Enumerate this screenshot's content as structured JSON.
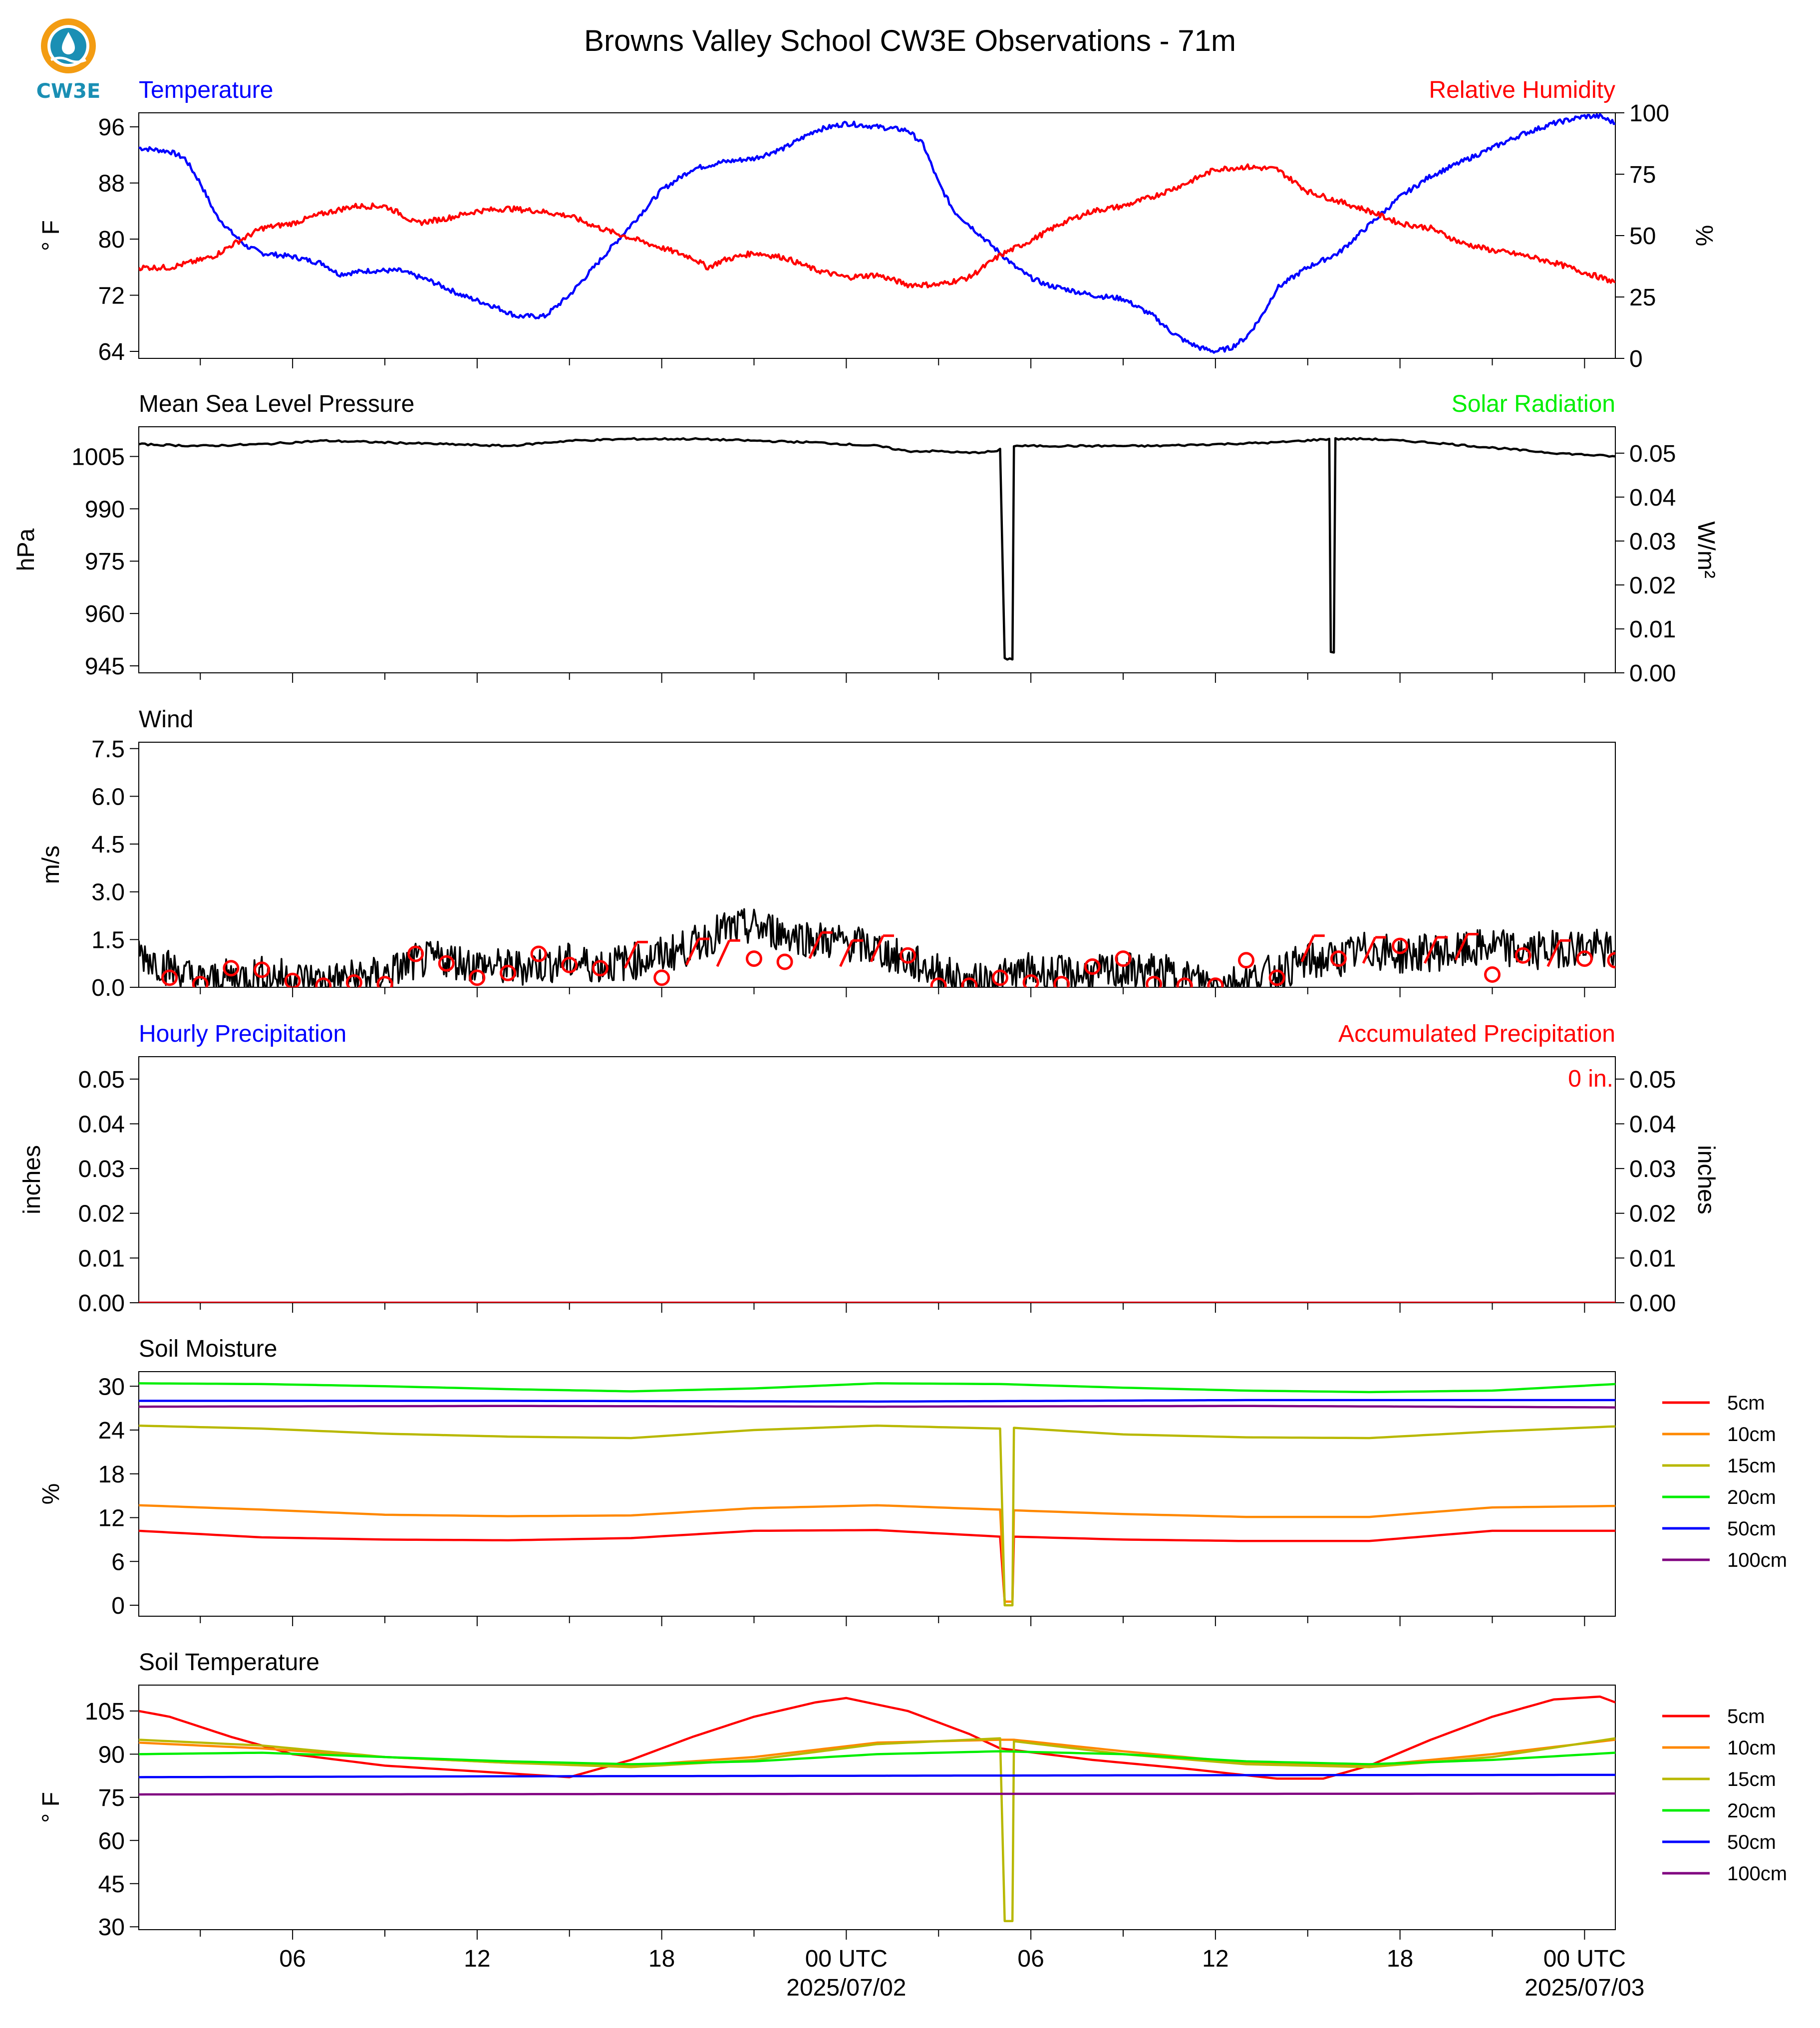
{
  "title": "Browns Valley School CW3E Observations - 71m",
  "logo": {
    "text": "CW3E",
    "icon": "water-drop-sun-logo-icon",
    "colors": {
      "ring": "#f39c12",
      "drop": "#1a8fb4"
    }
  },
  "xaxis": {
    "start_hour": 1,
    "end_hour": 49,
    "tick_hours": [
      6,
      12,
      18,
      24,
      30,
      36,
      42,
      48
    ],
    "tick_labels": [
      "06",
      "12",
      "18",
      "00 UTC",
      "06",
      "12",
      "18",
      "00 UTC"
    ],
    "date_labels": [
      {
        "hour": 24,
        "text": "2025/07/02"
      },
      {
        "hour": 48,
        "text": "2025/07/03"
      }
    ]
  },
  "chart_data": [
    {
      "type": "line",
      "panel": "temperature-humidity",
      "title_left": "Temperature",
      "title_right": "Relative Humidity",
      "ylabel": "° F",
      "ylabel_right": "%",
      "ylim": [
        63,
        98
      ],
      "yticks": [
        64,
        72,
        80,
        88,
        96
      ],
      "ylim_right": [
        0,
        100
      ],
      "yticks_right": [
        0,
        25,
        50,
        75,
        100
      ],
      "colors": {
        "left": "#0000ff",
        "right": "#ff0000"
      },
      "series": [
        {
          "name": "Temperature",
          "axis": "left",
          "color": "#0000ff",
          "x": [
            1,
            2,
            2.5,
            3,
            3.5,
            4,
            4.5,
            5,
            6,
            7,
            7.5,
            8.5,
            9.5,
            10.5,
            11.5,
            12.5,
            13.3,
            14.2,
            15,
            16,
            17,
            18,
            19,
            20,
            21,
            22,
            23,
            24,
            25,
            26,
            26.5,
            27,
            27.5,
            28,
            28.5,
            29,
            29.5,
            30,
            30.5,
            31,
            32,
            33,
            34,
            34.5,
            35,
            35.5,
            36,
            36.5,
            37,
            37.5,
            38,
            39,
            40,
            41,
            42,
            43,
            44,
            45,
            46,
            47,
            48,
            48.5,
            49
          ],
          "y": [
            93,
            92.5,
            91.5,
            88,
            83.5,
            81,
            79,
            78,
            77.5,
            76.5,
            75,
            75.5,
            75.5,
            74,
            72,
            70.5,
            69,
            69,
            72,
            77,
            82,
            87,
            90,
            91,
            91.5,
            93,
            95.5,
            96.5,
            96,
            95.5,
            93.5,
            88,
            84,
            82,
            80,
            78,
            76,
            74.5,
            73.5,
            73,
            72,
            71.5,
            69,
            67,
            65.5,
            64.5,
            64,
            64.5,
            66,
            69,
            73,
            76,
            78,
            82,
            86,
            89,
            91,
            93,
            95,
            96.5,
            97.5,
            97.5,
            96.5
          ]
        },
        {
          "name": "Relative Humidity",
          "axis": "right",
          "color": "#ff0000",
          "x": [
            1,
            2,
            3,
            3.5,
            4,
            5,
            6,
            6.5,
            7,
            8,
            9,
            9.5,
            10,
            11,
            12,
            13,
            14,
            15,
            16,
            17,
            18,
            19,
            19.5,
            20,
            21,
            22,
            23,
            24,
            25,
            26,
            27,
            28,
            29,
            30,
            31,
            32,
            33,
            34,
            35,
            36,
            37,
            38,
            39,
            40,
            41,
            42,
            43,
            44,
            45,
            46,
            47,
            48,
            49
          ],
          "y": [
            37,
            37,
            40,
            42,
            46,
            53,
            55,
            57,
            59,
            62,
            62,
            59,
            55,
            57,
            60,
            61,
            60,
            58,
            53,
            49,
            45,
            41,
            37,
            40,
            43,
            41,
            36,
            33,
            34,
            30,
            30,
            33,
            42,
            48,
            55,
            60,
            62,
            66,
            71,
            77,
            78,
            77,
            68,
            64,
            60,
            55,
            53,
            47,
            44,
            42,
            39,
            35,
            31
          ]
        }
      ]
    },
    {
      "type": "line",
      "panel": "pressure-solar",
      "title_left": "Mean Sea Level Pressure",
      "title_right": "Solar Radiation",
      "ylabel": "hPa",
      "ylabel_right": "W/m²",
      "ylim": [
        943,
        1013.5
      ],
      "yticks": [
        945,
        960,
        975,
        990,
        1005
      ],
      "ylim_right": [
        0,
        0.056
      ],
      "yticks_right": [
        0.0,
        0.01,
        0.02,
        0.03,
        0.04,
        0.05
      ],
      "colors": {
        "right_title": "#00ee00"
      },
      "series": [
        {
          "name": "Mean Sea Level Pressure",
          "axis": "left",
          "color": "#000000",
          "x": [
            1,
            3,
            5,
            7,
            9,
            11,
            13,
            15,
            17,
            19,
            21,
            23,
            25,
            26,
            27,
            28,
            28.9,
            29.0,
            29.15,
            29.4,
            29.45,
            30,
            32,
            34,
            36,
            38,
            39.7,
            39.75,
            39.85,
            39.9,
            41,
            43,
            45,
            47,
            49
          ],
          "y": [
            1008.5,
            1008,
            1008.5,
            1009.5,
            1009,
            1008.5,
            1008,
            1009.5,
            1010,
            1010,
            1009.5,
            1009,
            1008,
            1006.5,
            1006.5,
            1006,
            1006.5,
            1007,
            947,
            947,
            1008,
            1008,
            1008,
            1008,
            1008.5,
            1009,
            1010,
            949,
            949,
            1010,
            1010,
            1009,
            1007.5,
            1006,
            1005
          ]
        }
      ]
    },
    {
      "type": "line",
      "panel": "wind",
      "title_left": "Wind",
      "ylabel": "m/s",
      "ylim": [
        0,
        7.7
      ],
      "yticks": [
        0.0,
        1.5,
        3.0,
        4.5,
        6.0,
        7.5
      ],
      "series": [
        {
          "name": "Wind",
          "color": "#000000",
          "x": [
            1,
            2,
            3,
            4,
            5,
            6,
            7,
            8,
            9,
            10,
            11,
            12,
            13,
            14,
            15,
            16,
            17,
            18,
            19,
            20,
            21,
            22,
            23,
            24,
            25,
            26,
            27,
            28,
            29,
            30,
            31,
            32,
            33,
            34,
            35,
            36,
            37,
            38,
            39,
            40,
            41,
            42,
            43,
            44,
            45,
            46,
            47,
            48,
            49
          ],
          "y": [
            1.1,
            0.6,
            0.2,
            0.3,
            0.4,
            0.3,
            0.2,
            0.3,
            0.4,
            0.8,
            0.9,
            0.7,
            0.6,
            0.7,
            0.8,
            0.7,
            0.8,
            1.0,
            1.3,
            1.8,
            1.9,
            1.7,
            1.5,
            1.4,
            1.2,
            0.8,
            0.5,
            0.1,
            0.3,
            0.5,
            0.4,
            0.4,
            0.5,
            0.5,
            0.3,
            0.1,
            0.2,
            0.5,
            0.8,
            0.9,
            1.2,
            1.0,
            1.1,
            1.1,
            1.3,
            1.1,
            1.2,
            1.3,
            1.1
          ]
        },
        {
          "name": "Wind barbs",
          "color": "#ff0000",
          "x": [
            2,
            3,
            4,
            5,
            6,
            7,
            8,
            9,
            10,
            11,
            12,
            13,
            14,
            15,
            16,
            17,
            18,
            19,
            20,
            21,
            22,
            23,
            24,
            25,
            26,
            27,
            28,
            29,
            30,
            31,
            32,
            33,
            34,
            35,
            36,
            37,
            38,
            39,
            40,
            41,
            42,
            43,
            44,
            45,
            46,
            47,
            48,
            49
          ],
          "y": [
            0.3,
            0.1,
            0.6,
            0.55,
            0.2,
            0.05,
            0.15,
            0.1,
            1.05,
            0.75,
            0.3,
            0.45,
            1.05,
            0.7,
            0.6,
            0.95,
            0.3,
            1.05,
            1.0,
            0.9,
            0.8,
            1.25,
            1.0,
            1.15,
            1.0,
            0.05,
            0.05,
            0.3,
            0.15,
            0.1,
            0.65,
            0.9,
            0.1,
            0.05,
            0.05,
            0.85,
            0.3,
            1.15,
            0.9,
            1.1,
            1.3,
            1.1,
            1.2,
            0.4,
            1.0,
            1.0,
            0.9,
            0.85
          ]
        }
      ]
    },
    {
      "type": "bar",
      "panel": "precipitation",
      "title_left": "Hourly Precipitation",
      "title_right": "Accumulated Precipitation",
      "ylabel": "inches",
      "ylabel_right": "inches",
      "ylim": [
        0,
        0.055
      ],
      "yticks": [
        0.0,
        0.01,
        0.02,
        0.03,
        0.04,
        0.05
      ],
      "yticks_right": [
        0.0,
        0.01,
        0.02,
        0.03,
        0.04,
        0.05
      ],
      "annotation": "0 in.",
      "colors": {
        "left": "#0000ff",
        "right": "#ff0000"
      },
      "series": [
        {
          "name": "Hourly Precipitation",
          "color": "#0000ff",
          "x": [
            1,
            49
          ],
          "y": [
            0,
            0
          ]
        },
        {
          "name": "Accumulated Precipitation",
          "color": "#ff0000",
          "x": [
            1,
            49
          ],
          "y": [
            0,
            0
          ]
        }
      ]
    },
    {
      "type": "line",
      "panel": "soil-moisture",
      "title_left": "Soil Moisture",
      "ylabel": "%",
      "ylim": [
        -1.5,
        32
      ],
      "yticks": [
        0,
        6,
        12,
        18,
        24,
        30
      ],
      "legend": [
        "5cm",
        "10cm",
        "15cm",
        "20cm",
        "50cm",
        "100cm"
      ],
      "series": [
        {
          "name": "5cm",
          "color": "#ff0000",
          "x": [
            1,
            5,
            9,
            13,
            17,
            21,
            25,
            29,
            29.15,
            29.4,
            29.45,
            33,
            37,
            41,
            45,
            49
          ],
          "y": [
            10.2,
            9.3,
            9.0,
            8.9,
            9.2,
            10.2,
            10.3,
            9.4,
            0.5,
            0.5,
            9.4,
            9.0,
            8.8,
            8.8,
            10.2,
            10.2
          ]
        },
        {
          "name": "10cm",
          "color": "#ff8800",
          "x": [
            1,
            5,
            9,
            13,
            17,
            21,
            25,
            29,
            29.15,
            29.4,
            29.45,
            33,
            37,
            41,
            45,
            49
          ],
          "y": [
            13.7,
            13.1,
            12.4,
            12.2,
            12.3,
            13.3,
            13.7,
            13.1,
            0.5,
            0.5,
            13.0,
            12.5,
            12.1,
            12.1,
            13.4,
            13.6
          ]
        },
        {
          "name": "15cm",
          "color": "#b8b800",
          "x": [
            1,
            5,
            9,
            13,
            17,
            21,
            25,
            29,
            29.15,
            29.4,
            29.45,
            33,
            37,
            41,
            45,
            49
          ],
          "y": [
            24.6,
            24.2,
            23.5,
            23.1,
            22.9,
            24.0,
            24.6,
            24.2,
            0,
            0,
            24.3,
            23.4,
            23.0,
            22.9,
            23.8,
            24.5
          ]
        },
        {
          "name": "20cm",
          "color": "#00ee00",
          "x": [
            1,
            5,
            9,
            13,
            17,
            21,
            25,
            29,
            33,
            37,
            41,
            45,
            49
          ],
          "y": [
            30.4,
            30.3,
            30.0,
            29.6,
            29.3,
            29.7,
            30.4,
            30.3,
            29.8,
            29.4,
            29.2,
            29.4,
            30.3
          ]
        },
        {
          "name": "50cm",
          "color": "#0000ff",
          "x": [
            1,
            13,
            25,
            37,
            49
          ],
          "y": [
            28.0,
            28.0,
            27.9,
            28.1,
            28.1
          ]
        },
        {
          "name": "100cm",
          "color": "#800080",
          "x": [
            1,
            13,
            25,
            37,
            49
          ],
          "y": [
            27.2,
            27.3,
            27.2,
            27.3,
            27.1
          ]
        }
      ]
    },
    {
      "type": "line",
      "panel": "soil-temperature",
      "title_left": "Soil Temperature",
      "ylabel": "° F",
      "ylim": [
        29,
        114
      ],
      "yticks": [
        30,
        45,
        60,
        75,
        90,
        105
      ],
      "legend": [
        "5cm",
        "10cm",
        "15cm",
        "20cm",
        "50cm",
        "100cm"
      ],
      "series": [
        {
          "name": "5cm",
          "color": "#ff0000",
          "x": [
            1,
            2,
            4,
            6,
            9,
            12,
            15,
            17,
            19,
            21,
            23,
            24,
            26,
            28,
            29,
            32,
            35,
            38,
            39.5,
            41,
            43,
            45,
            47,
            48.5,
            49
          ],
          "y": [
            105,
            103,
            96,
            90,
            86,
            84,
            82,
            88,
            96,
            103,
            108,
            109.5,
            105,
            97,
            92,
            88,
            85,
            81.5,
            81.5,
            86,
            95,
            103,
            109,
            110,
            108
          ]
        },
        {
          "name": "10cm",
          "color": "#ff8800",
          "x": [
            1,
            5,
            9,
            13,
            17,
            21,
            25,
            29,
            29.15,
            29.4,
            29.45,
            33,
            37,
            41,
            45,
            49
          ],
          "y": [
            94,
            92,
            89,
            87,
            86,
            89,
            94,
            95,
            95,
            95,
            95,
            91,
            87,
            86,
            90,
            95
          ]
        },
        {
          "name": "15cm",
          "color": "#b8b800",
          "x": [
            1,
            5,
            9,
            13,
            17,
            21,
            25,
            29,
            29.15,
            29.4,
            29.45,
            33,
            37,
            41,
            45,
            49
          ],
          "y": [
            95,
            93,
            89,
            87,
            85.5,
            88,
            93.5,
            95.5,
            32,
            32,
            94.5,
            90,
            86.5,
            85.5,
            89,
            95.5
          ]
        },
        {
          "name": "20cm",
          "color": "#00ee00",
          "x": [
            1,
            5,
            9,
            13,
            17,
            21,
            25,
            29,
            33,
            37,
            41,
            45,
            49
          ],
          "y": [
            90,
            90.5,
            89,
            87.5,
            86.5,
            87.5,
            90,
            91,
            90,
            87.5,
            86.5,
            88,
            90.5
          ]
        },
        {
          "name": "50cm",
          "color": "#0000ff",
          "x": [
            1,
            13,
            25,
            37,
            49
          ],
          "y": [
            82,
            82.3,
            82.5,
            82.7,
            82.8
          ]
        },
        {
          "name": "100cm",
          "color": "#800080",
          "x": [
            1,
            13,
            25,
            37,
            49
          ],
          "y": [
            76,
            76.1,
            76.2,
            76.2,
            76.3
          ]
        }
      ]
    }
  ]
}
